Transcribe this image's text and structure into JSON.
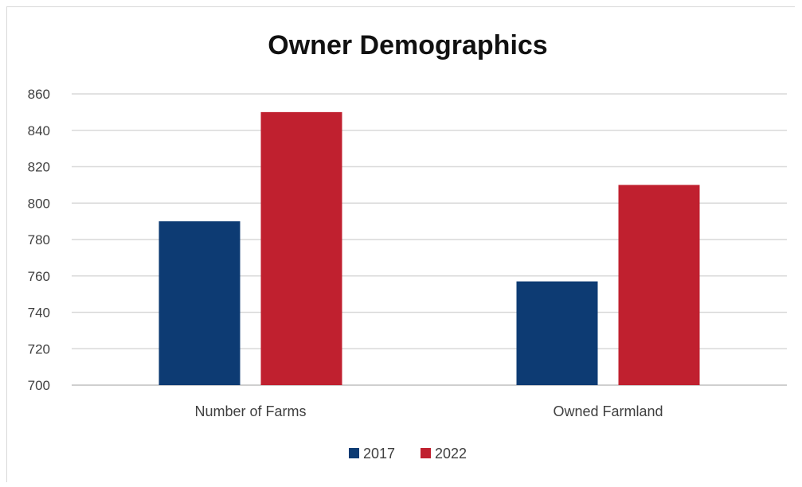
{
  "chart_data": {
    "type": "bar",
    "title": "Owner Demographics",
    "categories": [
      "Number of Farms",
      "Owned Farmland"
    ],
    "series": [
      {
        "name": "2017",
        "values": [
          790,
          757
        ],
        "color": "#0d3b73"
      },
      {
        "name": "2022",
        "values": [
          850,
          810
        ],
        "color": "#c0202f"
      }
    ],
    "ylim": [
      700,
      860
    ],
    "yticks": [
      "700",
      "720",
      "740",
      "760",
      "780",
      "800",
      "820",
      "840",
      "860"
    ],
    "grid": true,
    "legend_position": "bottom"
  }
}
